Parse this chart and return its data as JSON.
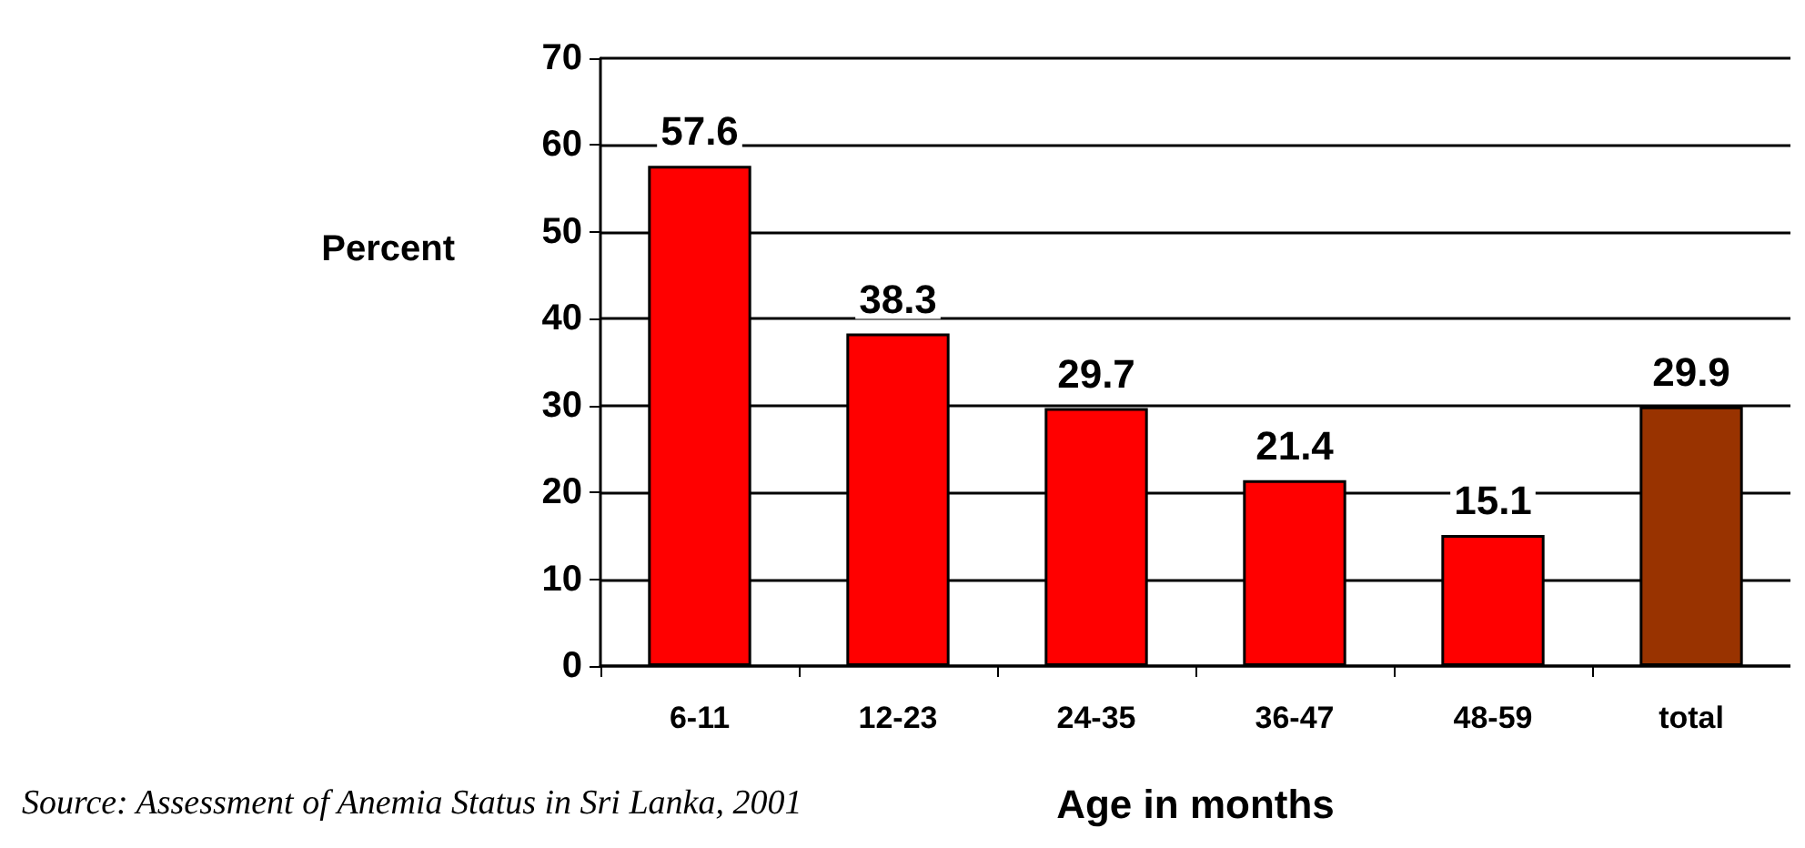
{
  "chart_data": {
    "type": "bar",
    "xlabel": "Age in months",
    "ylabel": "Percent",
    "categories": [
      "6-11",
      "12-23",
      "24-35",
      "36-47",
      "48-59",
      "total"
    ],
    "values": [
      57.6,
      38.3,
      29.7,
      21.4,
      15.1,
      29.9
    ],
    "colors": [
      "#ff0000",
      "#ff0000",
      "#ff0000",
      "#ff0000",
      "#ff0000",
      "#993300"
    ],
    "ylim": [
      0,
      70
    ],
    "yticks": [
      0,
      10,
      20,
      30,
      40,
      50,
      60,
      70
    ],
    "grid": "y",
    "data_labels": true,
    "annotations": [
      "Source: Assessment of Anemia Status in Sri Lanka, 2001"
    ]
  }
}
